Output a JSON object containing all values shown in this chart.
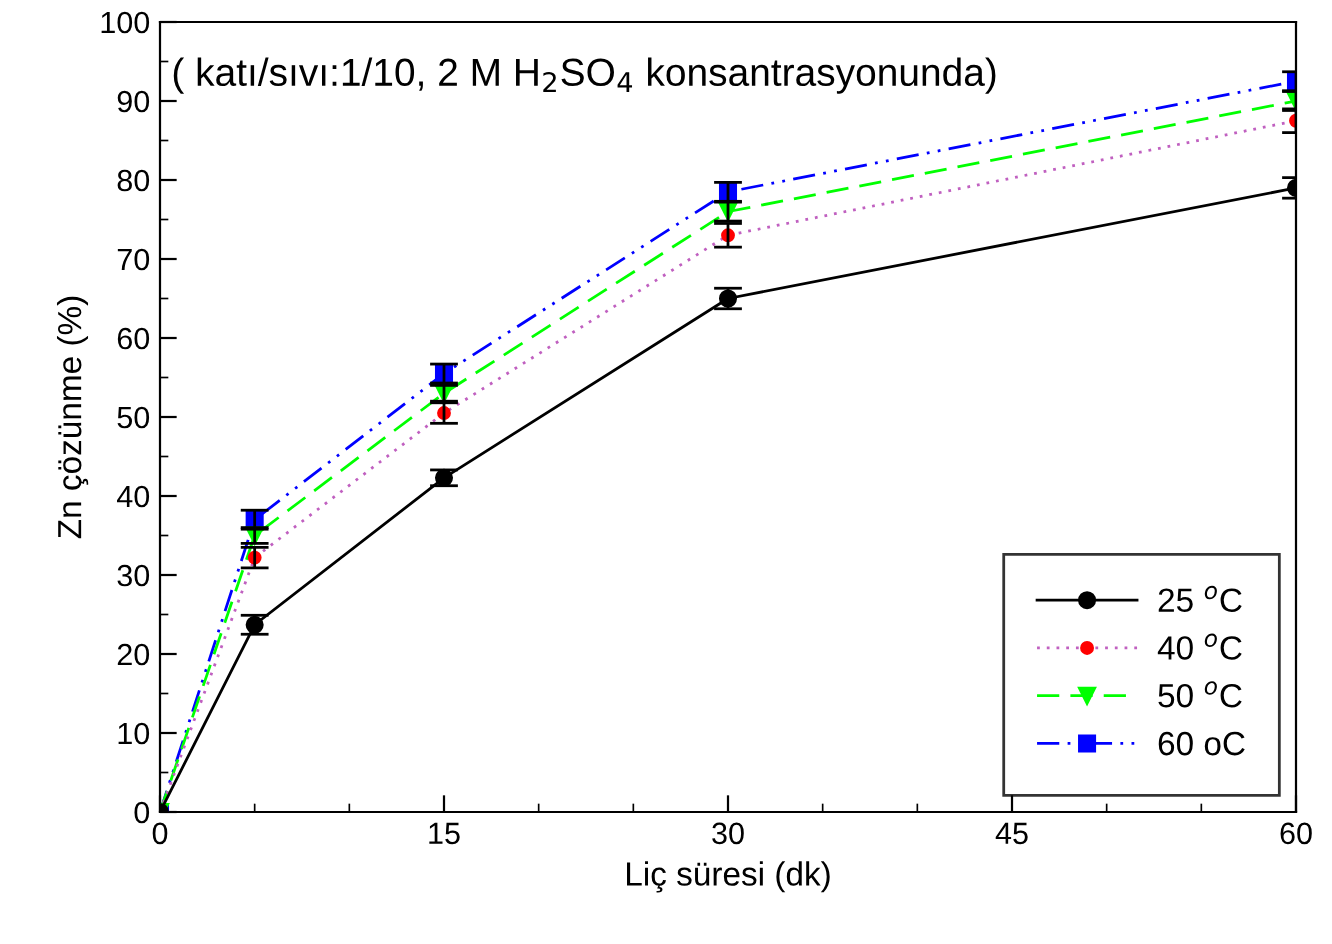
{
  "chart_data": {
    "type": "line",
    "xlabel": "Liç süresi (dk)",
    "ylabel": "Zn çözünme (%)",
    "annotations": [
      "( katı/sıvı:1/10, 2 M H$_{2}$SO$_{4}$ konsantrasyonunda)"
    ],
    "x": [
      0,
      5,
      15,
      30,
      60
    ],
    "series": [
      {
        "name": "25 $^{o}$C",
        "color": "#000000",
        "values": [
          0,
          23.7,
          42.3,
          65,
          79
        ],
        "errors": [
          null,
          1.2,
          1,
          1.3,
          1.3
        ],
        "marker": "circle",
        "line_style": "solid"
      },
      {
        "name": "40 $^{o}$C",
        "color": "#ff0000",
        "values": [
          0,
          32.2,
          50.5,
          73,
          87.5
        ],
        "errors": [
          null,
          1.3,
          1.3,
          1.5,
          1.5
        ],
        "marker": "circle",
        "line_style": "dotted"
      },
      {
        "name": "50 $^{o}$C",
        "color": "#00ff00",
        "values": [
          0,
          35,
          53,
          76,
          90
        ],
        "errors": [
          null,
          1,
          1,
          1.2,
          1.2
        ],
        "marker": "triangle",
        "line_style": "dashed"
      },
      {
        "name": "60 oC",
        "color": "#0000ff",
        "values": [
          0,
          37,
          55.5,
          78.5,
          92.5
        ],
        "errors": [
          null,
          1.2,
          1.2,
          1.2,
          1.2
        ],
        "marker": "square",
        "line_style": "dashdotdot"
      }
    ],
    "xlim": [
      0,
      60
    ],
    "xticks": [
      0,
      15,
      30,
      45,
      60
    ],
    "ylim": [
      0,
      100
    ],
    "yticks": [
      0,
      10,
      20,
      30,
      40,
      50,
      60,
      70,
      80,
      90,
      100
    ],
    "grid": false,
    "legend": "bottom right"
  }
}
